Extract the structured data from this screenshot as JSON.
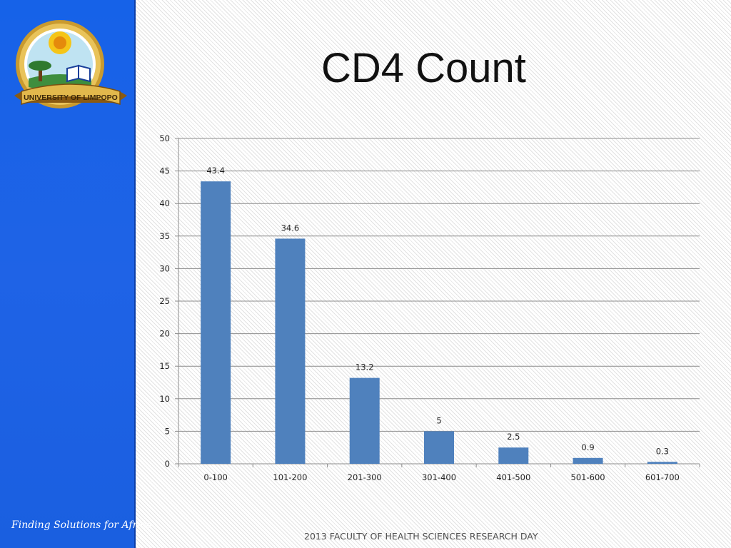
{
  "sidebar": {
    "logo_text": "UNIVERSITY OF LIMPOPO",
    "tagline": "Finding Solutions for Africa"
  },
  "slide": {
    "title": "CD4 Count",
    "footer": "2013 FACULTY OF HEALTH SCIENCES RESEARCH DAY"
  },
  "colors": {
    "sidebar": "#1f63e6",
    "bar": "#4f81bd"
  },
  "chart_data": {
    "type": "bar",
    "title": "",
    "xlabel": "",
    "ylabel": "",
    "categories": [
      "0-100",
      "101-200",
      "201-300",
      "301-400",
      "401-500",
      "501-600",
      "601-700"
    ],
    "values": [
      43.4,
      34.6,
      13.2,
      5,
      2.5,
      0.9,
      0.3
    ],
    "value_labels": [
      "43.4",
      "34.6",
      "13.2",
      "5",
      "2.5",
      "0.9",
      "0.3"
    ],
    "ylim": [
      0,
      50
    ],
    "y_ticks": [
      0,
      5,
      10,
      15,
      20,
      25,
      30,
      35,
      40,
      45,
      50
    ],
    "grid": true,
    "legend": "none"
  }
}
